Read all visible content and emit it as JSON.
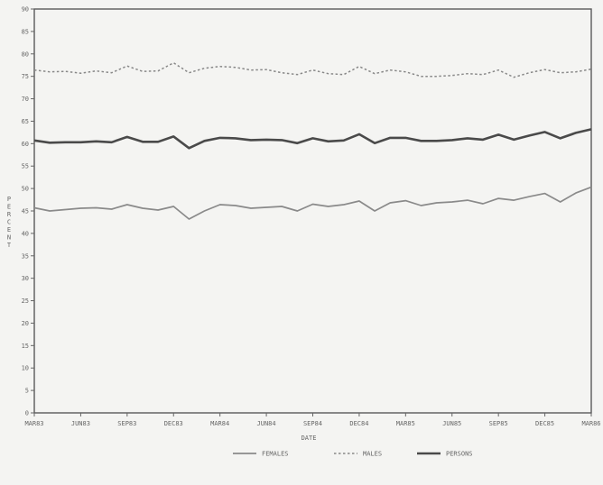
{
  "chart_data": {
    "type": "line",
    "xlabel": "DATE",
    "ylabel": "PER CENT",
    "ylim": [
      0,
      90
    ],
    "yticks": [
      0,
      5,
      10,
      15,
      20,
      25,
      30,
      35,
      40,
      45,
      50,
      55,
      60,
      65,
      70,
      75,
      80,
      85,
      90
    ],
    "xtick_labels": [
      "MAR83",
      "JUN83",
      "SEP83",
      "DEC83",
      "MAR84",
      "JUN84",
      "SEP84",
      "DEC84",
      "MAR85",
      "JUN85",
      "SEP85",
      "DEC85",
      "MAR86"
    ],
    "x_monthly": [
      "Mar 1983",
      "Apr 1983",
      "May 1983",
      "Jun 1983",
      "Jul 1983",
      "Aug 1983",
      "Sep 1983",
      "Oct 1983",
      "Nov 1983",
      "Dec 1983",
      "Jan 1984",
      "Feb 1984",
      "Mar 1984",
      "Apr 1984",
      "May 1984",
      "Jun 1984",
      "Jul 1984",
      "Aug 1984",
      "Sep 1984",
      "Oct 1984",
      "Nov 1984",
      "Dec 1984",
      "Jan 1985",
      "Feb 1985",
      "Mar 1985",
      "Apr 1985",
      "May 1985",
      "Jun 1985",
      "Jul 1985",
      "Aug 1985",
      "Sep 1985",
      "Oct 1985",
      "Nov 1985",
      "Dec 1985",
      "Jan 1986",
      "Feb 1986",
      "Mar 1986"
    ],
    "grid": false,
    "legend_position": "bottom",
    "series": [
      {
        "name": "FEMALES",
        "style": "solid-thin",
        "color": "#8a8a8a",
        "values": [
          45.7,
          45.0,
          45.3,
          45.6,
          45.7,
          45.4,
          46.4,
          45.6,
          45.2,
          46.0,
          43.2,
          45.0,
          46.4,
          46.2,
          45.6,
          45.8,
          46.0,
          45.0,
          46.5,
          46.0,
          46.4,
          47.2,
          45.0,
          46.8,
          47.3,
          46.2,
          46.8,
          47.0,
          47.4,
          46.6,
          47.8,
          47.4,
          48.2,
          48.9,
          47.0,
          49.0,
          50.3
        ]
      },
      {
        "name": "MALES",
        "style": "dashed",
        "color": "#888888",
        "values": [
          76.4,
          76.0,
          76.1,
          75.7,
          76.2,
          75.8,
          77.3,
          76.1,
          76.2,
          78.0,
          75.8,
          76.8,
          77.2,
          77.0,
          76.4,
          76.5,
          75.8,
          75.4,
          76.4,
          75.6,
          75.4,
          77.2,
          75.6,
          76.4,
          76.0,
          75.0,
          75.0,
          75.2,
          75.6,
          75.4,
          76.4,
          74.8,
          75.8,
          76.5,
          75.8,
          76.0,
          76.6
        ]
      },
      {
        "name": "PERSONS",
        "style": "solid-thick",
        "color": "#4a4a4a",
        "values": [
          60.7,
          60.2,
          60.3,
          60.3,
          60.5,
          60.3,
          61.5,
          60.4,
          60.4,
          61.6,
          59.0,
          60.6,
          61.3,
          61.2,
          60.8,
          60.9,
          60.8,
          60.1,
          61.2,
          60.5,
          60.7,
          62.1,
          60.1,
          61.3,
          61.3,
          60.6,
          60.6,
          60.8,
          61.2,
          60.9,
          62.0,
          60.9,
          61.8,
          62.6,
          61.2,
          62.4,
          63.2
        ]
      }
    ]
  }
}
